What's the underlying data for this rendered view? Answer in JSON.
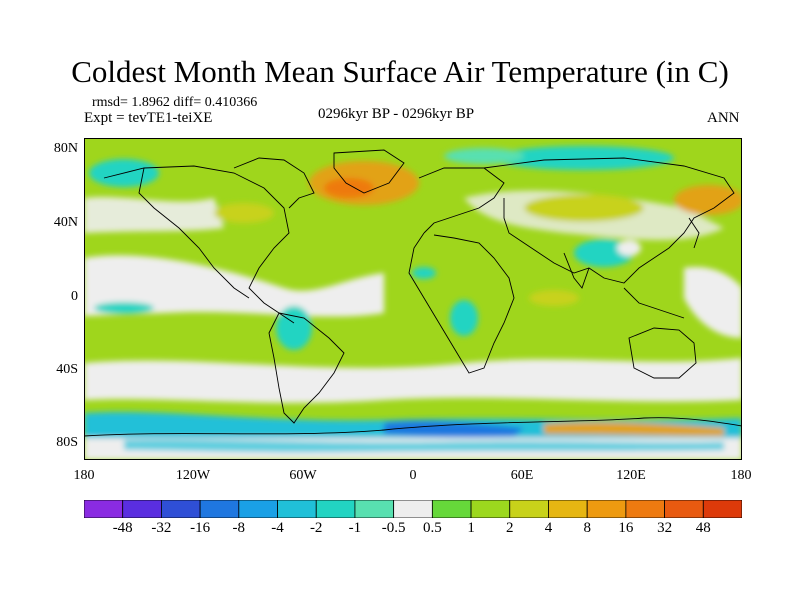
{
  "title": "Coldest Month Mean Surface Air Temperature (in C)",
  "stats": "rmsd= 1.8962 diff= 0.410366",
  "experiment": "Expt = tevTE1-teiXE",
  "period": "0296kyr BP - 0296kyr BP",
  "season": "ANN",
  "lat_labels": [
    "80N",
    "40N",
    "0",
    "40S",
    "80S"
  ],
  "lon_labels": [
    "180",
    "120W",
    "60W",
    "0",
    "60E",
    "120E",
    "180"
  ],
  "colorbar": {
    "labels": [
      "-48",
      "-32",
      "-16",
      "-8",
      "-4",
      "-2",
      "-1",
      "-0.5",
      "0.5",
      "1",
      "2",
      "4",
      "8",
      "16",
      "32",
      "48"
    ],
    "colors": [
      "#8a2be2",
      "#5a2ee0",
      "#2f4fd6",
      "#1f77e0",
      "#1aa0e6",
      "#20c0d8",
      "#22d4c2",
      "#58e0b0",
      "#eeeeee",
      "#66d83a",
      "#9cd81e",
      "#c8d21a",
      "#e6b612",
      "#ee9a10",
      "#ee7a10",
      "#e85a10",
      "#dd3a0a"
    ]
  },
  "palette": {
    "ocean_warm": "#a4d61c",
    "neutral": "#eeeeee",
    "orange": "#e2a214",
    "cold": "#1aa0e6",
    "cyan": "#22d4c2"
  }
}
